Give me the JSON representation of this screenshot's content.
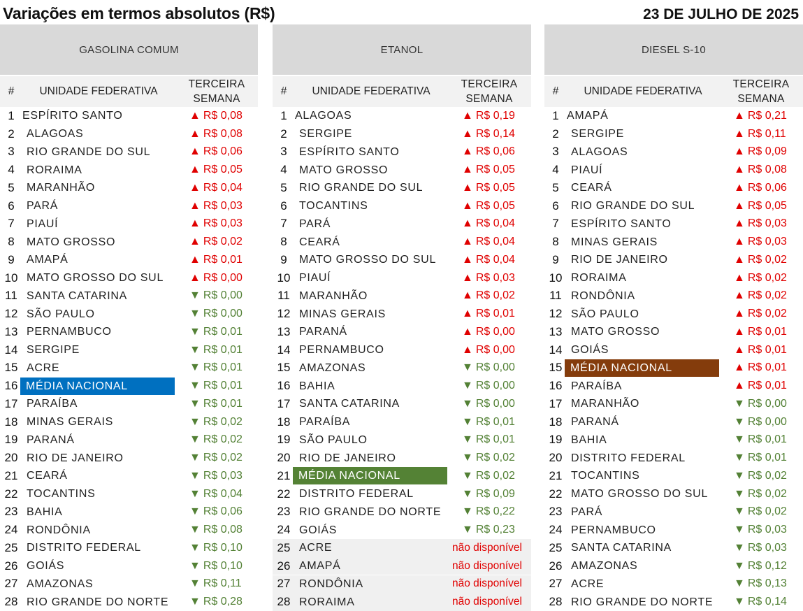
{
  "title": "Variações em termos absolutos (R$)",
  "date": "23 DE JULHO DE 2025",
  "colors": {
    "up": "#e00000",
    "down": "#538135",
    "header_bg": "#d9d9d9",
    "subheader_bg": "#f2f2f2"
  },
  "columns": {
    "num": "#",
    "uf": "UNIDADE FEDERATIVA",
    "week_line1": "TERCEIRA",
    "week_line2": "SEMANA"
  },
  "arrows": {
    "up": "▲",
    "down": "▼"
  },
  "panels": [
    {
      "fuel": "GASOLINA COMUM",
      "highlight_color": "#0070c0",
      "rows": [
        {
          "n": "1",
          "uf": "ESPÍRITO SANTO",
          "val": "R$ 0,08",
          "dir": "up"
        },
        {
          "n": "2",
          "uf": "ALAGOAS",
          "val": "R$ 0,08",
          "dir": "up"
        },
        {
          "n": "3",
          "uf": "RIO GRANDE DO SUL",
          "val": "R$ 0,06",
          "dir": "up"
        },
        {
          "n": "4",
          "uf": "RORAIMA",
          "val": "R$ 0,05",
          "dir": "up"
        },
        {
          "n": "5",
          "uf": "MARANHÃO",
          "val": "R$ 0,04",
          "dir": "up"
        },
        {
          "n": "6",
          "uf": "PARÁ",
          "val": "R$ 0,03",
          "dir": "up"
        },
        {
          "n": "7",
          "uf": "PIAUÍ",
          "val": "R$ 0,03",
          "dir": "up"
        },
        {
          "n": "8",
          "uf": "MATO GROSSO",
          "val": "R$ 0,02",
          "dir": "up"
        },
        {
          "n": "9",
          "uf": "AMAPÁ",
          "val": "R$ 0,01",
          "dir": "up"
        },
        {
          "n": "10",
          "uf": "MATO GROSSO DO SUL",
          "val": "R$ 0,00",
          "dir": "up"
        },
        {
          "n": "11",
          "uf": "SANTA CATARINA",
          "val": "R$ 0,00",
          "dir": "down"
        },
        {
          "n": "12",
          "uf": "SÃO PAULO",
          "val": "R$ 0,00",
          "dir": "down"
        },
        {
          "n": "13",
          "uf": "PERNAMBUCO",
          "val": "R$ 0,01",
          "dir": "down"
        },
        {
          "n": "14",
          "uf": "SERGIPE",
          "val": "R$ 0,01",
          "dir": "down"
        },
        {
          "n": "15",
          "uf": "ACRE",
          "val": "R$ 0,01",
          "dir": "down"
        },
        {
          "n": "16",
          "uf": "MÉDIA NACIONAL",
          "val": "R$ 0,01",
          "dir": "down",
          "highlight": true
        },
        {
          "n": "17",
          "uf": "PARAÍBA",
          "val": "R$ 0,01",
          "dir": "down"
        },
        {
          "n": "18",
          "uf": "MINAS GERAIS",
          "val": "R$ 0,02",
          "dir": "down"
        },
        {
          "n": "19",
          "uf": "PARANÁ",
          "val": "R$ 0,02",
          "dir": "down"
        },
        {
          "n": "20",
          "uf": "RIO DE JANEIRO",
          "val": "R$ 0,02",
          "dir": "down"
        },
        {
          "n": "21",
          "uf": "CEARÁ",
          "val": "R$ 0,03",
          "dir": "down"
        },
        {
          "n": "22",
          "uf": "TOCANTINS",
          "val": "R$ 0,04",
          "dir": "down"
        },
        {
          "n": "23",
          "uf": "BAHIA",
          "val": "R$ 0,06",
          "dir": "down"
        },
        {
          "n": "24",
          "uf": "RONDÔNIA",
          "val": "R$ 0,08",
          "dir": "down"
        },
        {
          "n": "25",
          "uf": "DISTRITO FEDERAL",
          "val": "R$ 0,10",
          "dir": "down"
        },
        {
          "n": "26",
          "uf": "GOIÁS",
          "val": "R$ 0,10",
          "dir": "down"
        },
        {
          "n": "27",
          "uf": "AMAZONAS",
          "val": "R$ 0,11",
          "dir": "down"
        },
        {
          "n": "28",
          "uf": "RIO GRANDE DO NORTE",
          "val": "R$ 0,28",
          "dir": "down"
        }
      ]
    },
    {
      "fuel": "ETANOL",
      "highlight_color": "#548235",
      "rows": [
        {
          "n": "1",
          "uf": "ALAGOAS",
          "val": "R$ 0,19",
          "dir": "up"
        },
        {
          "n": "2",
          "uf": "SERGIPE",
          "val": "R$ 0,14",
          "dir": "up"
        },
        {
          "n": "3",
          "uf": "ESPÍRITO SANTO",
          "val": "R$ 0,06",
          "dir": "up"
        },
        {
          "n": "4",
          "uf": "MATO GROSSO",
          "val": "R$ 0,05",
          "dir": "up"
        },
        {
          "n": "5",
          "uf": "RIO GRANDE DO SUL",
          "val": "R$ 0,05",
          "dir": "up"
        },
        {
          "n": "6",
          "uf": "TOCANTINS",
          "val": "R$ 0,05",
          "dir": "up"
        },
        {
          "n": "7",
          "uf": "PARÁ",
          "val": "R$ 0,04",
          "dir": "up"
        },
        {
          "n": "8",
          "uf": "CEARÁ",
          "val": "R$ 0,04",
          "dir": "up"
        },
        {
          "n": "9",
          "uf": "MATO GROSSO DO SUL",
          "val": "R$ 0,04",
          "dir": "up"
        },
        {
          "n": "10",
          "uf": "PIAUÍ",
          "val": "R$ 0,03",
          "dir": "up"
        },
        {
          "n": "11",
          "uf": "MARANHÃO",
          "val": "R$ 0,02",
          "dir": "up"
        },
        {
          "n": "12",
          "uf": "MINAS GERAIS",
          "val": "R$ 0,01",
          "dir": "up"
        },
        {
          "n": "13",
          "uf": "PARANÁ",
          "val": "R$ 0,00",
          "dir": "up"
        },
        {
          "n": "14",
          "uf": "PERNAMBUCO",
          "val": "R$ 0,00",
          "dir": "up"
        },
        {
          "n": "15",
          "uf": "AMAZONAS",
          "val": "R$ 0,00",
          "dir": "down"
        },
        {
          "n": "16",
          "uf": "BAHIA",
          "val": "R$ 0,00",
          "dir": "down"
        },
        {
          "n": "17",
          "uf": "SANTA CATARINA",
          "val": "R$ 0,00",
          "dir": "down"
        },
        {
          "n": "18",
          "uf": "PARAÍBA",
          "val": "R$ 0,01",
          "dir": "down"
        },
        {
          "n": "19",
          "uf": "SÃO PAULO",
          "val": "R$ 0,01",
          "dir": "down"
        },
        {
          "n": "20",
          "uf": "RIO DE JANEIRO",
          "val": "R$ 0,02",
          "dir": "down"
        },
        {
          "n": "21",
          "uf": "MÉDIA NACIONAL",
          "val": "R$ 0,02",
          "dir": "down",
          "highlight": true
        },
        {
          "n": "22",
          "uf": "DISTRITO FEDERAL",
          "val": "R$ 0,09",
          "dir": "down"
        },
        {
          "n": "23",
          "uf": "RIO GRANDE DO NORTE",
          "val": "R$ 0,22",
          "dir": "down"
        },
        {
          "n": "24",
          "uf": "GOIÁS",
          "val": "R$ 0,23",
          "dir": "down"
        },
        {
          "n": "25",
          "uf": "ACRE",
          "val": "não disponível",
          "dir": "na"
        },
        {
          "n": "26",
          "uf": "AMAPÁ",
          "val": "não disponível",
          "dir": "na"
        },
        {
          "n": "27",
          "uf": "RONDÔNIA",
          "val": "não disponível",
          "dir": "na"
        },
        {
          "n": "28",
          "uf": "RORAIMA",
          "val": "não disponível",
          "dir": "na"
        }
      ]
    },
    {
      "fuel": "DIESEL S-10",
      "highlight_color": "#843c0c",
      "rows": [
        {
          "n": "1",
          "uf": "AMAPÁ",
          "val": "R$ 0,21",
          "dir": "up"
        },
        {
          "n": "2",
          "uf": "SERGIPE",
          "val": "R$ 0,11",
          "dir": "up"
        },
        {
          "n": "3",
          "uf": "ALAGOAS",
          "val": "R$ 0,09",
          "dir": "up"
        },
        {
          "n": "4",
          "uf": "PIAUÍ",
          "val": "R$ 0,08",
          "dir": "up"
        },
        {
          "n": "5",
          "uf": "CEARÁ",
          "val": "R$ 0,06",
          "dir": "up"
        },
        {
          "n": "6",
          "uf": "RIO GRANDE DO SUL",
          "val": "R$ 0,05",
          "dir": "up"
        },
        {
          "n": "7",
          "uf": "ESPÍRITO SANTO",
          "val": "R$ 0,03",
          "dir": "up"
        },
        {
          "n": "8",
          "uf": "MINAS GERAIS",
          "val": "R$ 0,03",
          "dir": "up"
        },
        {
          "n": "9",
          "uf": "RIO DE JANEIRO",
          "val": "R$ 0,02",
          "dir": "up"
        },
        {
          "n": "10",
          "uf": "RORAIMA",
          "val": "R$ 0,02",
          "dir": "up"
        },
        {
          "n": "11",
          "uf": "RONDÔNIA",
          "val": "R$ 0,02",
          "dir": "up"
        },
        {
          "n": "12",
          "uf": "SÃO PAULO",
          "val": "R$ 0,02",
          "dir": "up"
        },
        {
          "n": "13",
          "uf": "MATO GROSSO",
          "val": "R$ 0,01",
          "dir": "up"
        },
        {
          "n": "14",
          "uf": "GOIÁS",
          "val": "R$ 0,01",
          "dir": "up"
        },
        {
          "n": "15",
          "uf": "MÉDIA NACIONAL",
          "val": "R$ 0,01",
          "dir": "up",
          "highlight": true
        },
        {
          "n": "16",
          "uf": "PARAÍBA",
          "val": "R$ 0,01",
          "dir": "up"
        },
        {
          "n": "17",
          "uf": "MARANHÃO",
          "val": "R$ 0,00",
          "dir": "down"
        },
        {
          "n": "18",
          "uf": "PARANÁ",
          "val": "R$ 0,00",
          "dir": "down"
        },
        {
          "n": "19",
          "uf": "BAHIA",
          "val": "R$ 0,01",
          "dir": "down"
        },
        {
          "n": "20",
          "uf": "DISTRITO FEDERAL",
          "val": "R$ 0,01",
          "dir": "down"
        },
        {
          "n": "21",
          "uf": "TOCANTINS",
          "val": "R$ 0,02",
          "dir": "down"
        },
        {
          "n": "22",
          "uf": "MATO GROSSO DO SUL",
          "val": "R$ 0,02",
          "dir": "down"
        },
        {
          "n": "23",
          "uf": "PARÁ",
          "val": "R$ 0,02",
          "dir": "down"
        },
        {
          "n": "24",
          "uf": "PERNAMBUCO",
          "val": "R$ 0,03",
          "dir": "down"
        },
        {
          "n": "25",
          "uf": "SANTA CATARINA",
          "val": "R$ 0,03",
          "dir": "down"
        },
        {
          "n": "26",
          "uf": "AMAZONAS",
          "val": "R$ 0,12",
          "dir": "down"
        },
        {
          "n": "27",
          "uf": "ACRE",
          "val": "R$ 0,13",
          "dir": "down"
        },
        {
          "n": "28",
          "uf": "RIO GRANDE DO NORTE",
          "val": "R$ 0,14",
          "dir": "down"
        }
      ]
    }
  ]
}
